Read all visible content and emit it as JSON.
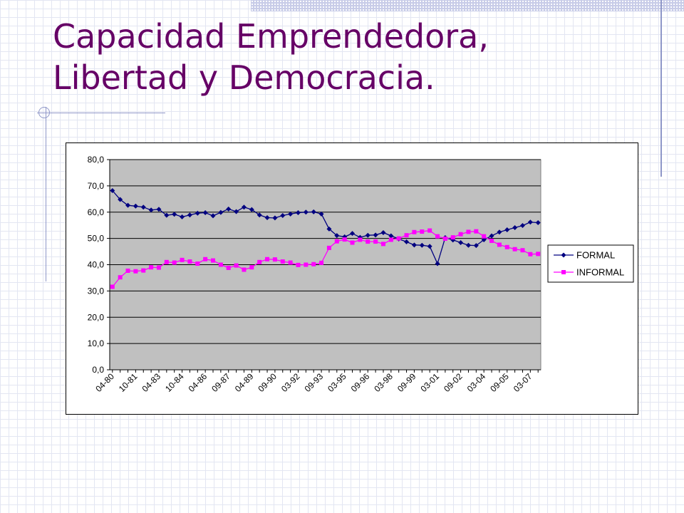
{
  "title_lines": [
    "Capacidad Emprendedora,",
    "Libertad y Democracia."
  ],
  "colors": {
    "title": "#660066",
    "plot_background": "#c0c0c0",
    "formal": "#000080",
    "informal": "#ff00ff"
  },
  "chart_data": {
    "type": "line",
    "title": "",
    "xlabel": "",
    "ylabel": "",
    "ylim": [
      0,
      80
    ],
    "y_ticks": [
      "0,0",
      "10,0",
      "20,0",
      "30,0",
      "40,0",
      "50,0",
      "60,0",
      "70,0",
      "80,0"
    ],
    "y_tick_values": [
      0,
      10,
      20,
      30,
      40,
      50,
      60,
      70,
      80
    ],
    "x_tick_labels": [
      "04-80",
      "10-81",
      "04-83",
      "10-84",
      "04-86",
      "09-87",
      "04-89",
      "09-90",
      "03-92",
      "09-93",
      "03-95",
      "09-96",
      "03-98",
      "09-99",
      "03-01",
      "09-02",
      "03-04",
      "09-05",
      "03-07"
    ],
    "legend_position": "right",
    "grid": true,
    "series": [
      {
        "name": "FORMAL",
        "marker": "diamond",
        "values": [
          68.2,
          64.8,
          62.6,
          62.3,
          61.9,
          60.8,
          61.1,
          58.8,
          59.2,
          58.2,
          58.9,
          59.6,
          59.8,
          58.6,
          59.9,
          61.2,
          60.2,
          61.9,
          61.0,
          58.9,
          57.9,
          57.8,
          58.7,
          59.3,
          59.8,
          60.0,
          60.1,
          59.3,
          53.6,
          51.1,
          50.6,
          51.9,
          50.4,
          51.2,
          51.3,
          52.2,
          51.0,
          49.8,
          48.7,
          47.5,
          47.4,
          47.0,
          40.4,
          50.3,
          49.4,
          48.4,
          47.4,
          47.3,
          49.5,
          51.0,
          52.4,
          53.3,
          54.1,
          54.9,
          56.2,
          56.0
        ]
      },
      {
        "name": "INFORMAL",
        "marker": "square",
        "values": [
          31.6,
          35.2,
          37.7,
          37.5,
          37.8,
          39.0,
          38.9,
          41.0,
          40.8,
          41.8,
          41.2,
          40.4,
          42.1,
          41.6,
          40.0,
          38.8,
          39.7,
          38.1,
          39.0,
          41.0,
          42.1,
          42.0,
          41.2,
          40.8,
          39.9,
          40.0,
          40.2,
          40.7,
          46.4,
          48.9,
          49.6,
          48.4,
          49.5,
          48.8,
          48.8,
          47.9,
          49.5,
          50.0,
          51.2,
          52.4,
          52.6,
          53.0,
          50.8,
          49.9,
          50.4,
          51.6,
          52.5,
          52.7,
          50.8,
          49.1,
          47.6,
          46.7,
          45.9,
          45.5,
          44.0,
          44.1
        ]
      }
    ]
  }
}
